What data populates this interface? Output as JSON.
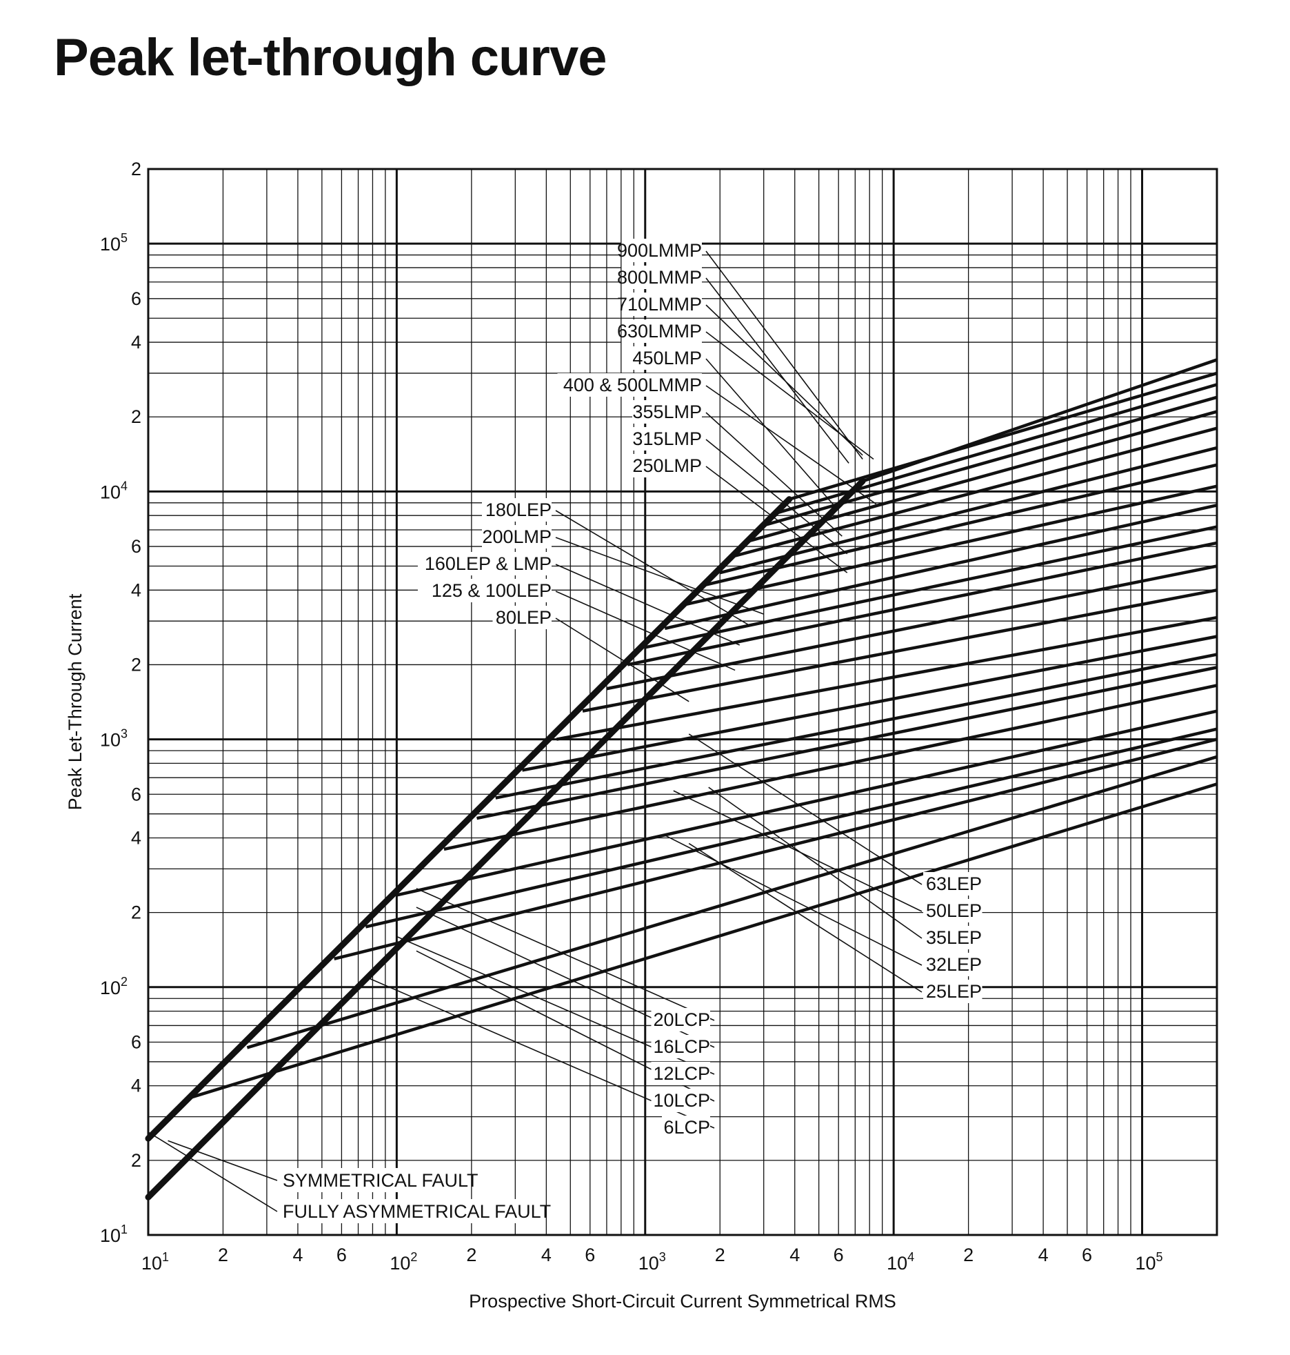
{
  "title": "Peak let-through curve",
  "chart_data": {
    "type": "line",
    "title": "Peak let-through curve",
    "xlabel": "Prospective Short-Circuit Current Symmetrical RMS",
    "ylabel": "Peak Let-Through Current",
    "xscale": "log",
    "yscale": "log",
    "xlim": [
      10,
      200000
    ],
    "ylim": [
      10,
      200000
    ],
    "grid": true,
    "x_tick_labels": [
      {
        "value": 10,
        "base": "10",
        "exp": "1"
      },
      {
        "value": 20,
        "base": "2",
        "exp": ""
      },
      {
        "value": 40,
        "base": "4",
        "exp": ""
      },
      {
        "value": 60,
        "base": "6",
        "exp": ""
      },
      {
        "value": 100,
        "base": "10",
        "exp": "2"
      },
      {
        "value": 200,
        "base": "2",
        "exp": ""
      },
      {
        "value": 400,
        "base": "4",
        "exp": ""
      },
      {
        "value": 600,
        "base": "6",
        "exp": ""
      },
      {
        "value": 1000,
        "base": "10",
        "exp": "3"
      },
      {
        "value": 2000,
        "base": "2",
        "exp": ""
      },
      {
        "value": 4000,
        "base": "4",
        "exp": ""
      },
      {
        "value": 6000,
        "base": "6",
        "exp": ""
      },
      {
        "value": 10000,
        "base": "10",
        "exp": "4"
      },
      {
        "value": 20000,
        "base": "2",
        "exp": ""
      },
      {
        "value": 40000,
        "base": "4",
        "exp": ""
      },
      {
        "value": 60000,
        "base": "6",
        "exp": ""
      },
      {
        "value": 100000,
        "base": "10",
        "exp": "5"
      }
    ],
    "y_tick_labels": [
      {
        "value": 10,
        "base": "10",
        "exp": "1"
      },
      {
        "value": 20,
        "base": "2",
        "exp": ""
      },
      {
        "value": 40,
        "base": "4",
        "exp": ""
      },
      {
        "value": 60,
        "base": "6",
        "exp": ""
      },
      {
        "value": 100,
        "base": "10",
        "exp": "2"
      },
      {
        "value": 200,
        "base": "2",
        "exp": ""
      },
      {
        "value": 400,
        "base": "4",
        "exp": ""
      },
      {
        "value": 600,
        "base": "6",
        "exp": ""
      },
      {
        "value": 1000,
        "base": "10",
        "exp": "3"
      },
      {
        "value": 2000,
        "base": "2",
        "exp": ""
      },
      {
        "value": 4000,
        "base": "4",
        "exp": ""
      },
      {
        "value": 6000,
        "base": "6",
        "exp": ""
      },
      {
        "value": 10000,
        "base": "10",
        "exp": "4"
      },
      {
        "value": 20000,
        "base": "2",
        "exp": ""
      },
      {
        "value": 40000,
        "base": "4",
        "exp": ""
      },
      {
        "value": 60000,
        "base": "6",
        "exp": ""
      },
      {
        "value": 100000,
        "base": "10",
        "exp": "5"
      },
      {
        "value": 200000,
        "base": "2",
        "exp": ""
      }
    ],
    "reference_lines": [
      {
        "name": "SYMMETRICAL FAULT",
        "x": [
          10,
          3800
        ],
        "y": [
          24.5,
          9300
        ]
      },
      {
        "name": "FULLY ASYMMETRICAL FAULT",
        "x": [
          10,
          7500
        ],
        "y": [
          14.2,
          11000
        ]
      }
    ],
    "series": [
      {
        "name": "900LMMP",
        "x": [
          7500,
          200000
        ],
        "y": [
          11000,
          34000
        ]
      },
      {
        "name": "800LMMP",
        "x": [
          3800,
          200000
        ],
        "y": [
          9300,
          30000
        ]
      },
      {
        "name": "710LMMP",
        "x": [
          3400,
          200000
        ],
        "y": [
          8200,
          27000
        ]
      },
      {
        "name": "630LMMP",
        "x": [
          3000,
          200000
        ],
        "y": [
          7300,
          24000
        ]
      },
      {
        "name": "450LMP",
        "x": [
          2600,
          200000
        ],
        "y": [
          6300,
          21000
        ]
      },
      {
        "name": "400 & 500LMMP",
        "x": [
          2300,
          200000
        ],
        "y": [
          5500,
          18000
        ]
      },
      {
        "name": "355LMP",
        "x": [
          2000,
          200000
        ],
        "y": [
          4700,
          15000
        ]
      },
      {
        "name": "315LMP",
        "x": [
          1750,
          200000
        ],
        "y": [
          4200,
          12800
        ]
      },
      {
        "name": "250LMP",
        "x": [
          1450,
          200000
        ],
        "y": [
          3500,
          10500
        ]
      },
      {
        "name": "200LMP",
        "x": [
          1200,
          200000
        ],
        "y": [
          2800,
          8800
        ]
      },
      {
        "name": "180LEP",
        "x": [
          1000,
          200000
        ],
        "y": [
          2350,
          7200
        ]
      },
      {
        "name": "160LEP & LMP",
        "x": [
          850,
          200000
        ],
        "y": [
          2000,
          6200
        ]
      },
      {
        "name": "125 & 100LEP",
        "x": [
          700,
          200000
        ],
        "y": [
          1600,
          5000
        ]
      },
      {
        "name": "80LEP",
        "x": [
          560,
          200000
        ],
        "y": [
          1300,
          4000
        ]
      },
      {
        "name": "63LEP",
        "x": [
          440,
          200000
        ],
        "y": [
          1000,
          3100
        ]
      },
      {
        "name": "50LEP",
        "x": [
          320,
          200000
        ],
        "y": [
          750,
          2600
        ]
      },
      {
        "name": "35LEP",
        "x": [
          250,
          200000
        ],
        "y": [
          580,
          2200
        ]
      },
      {
        "name": "32LEP",
        "x": [
          210,
          200000
        ],
        "y": [
          480,
          1950
        ]
      },
      {
        "name": "25LEP",
        "x": [
          155,
          200000
        ],
        "y": [
          360,
          1650
        ]
      },
      {
        "name": "20LCP",
        "x": [
          100,
          200000
        ],
        "y": [
          235,
          1300
        ]
      },
      {
        "name": "16LCP",
        "x": [
          75,
          200000
        ],
        "y": [
          175,
          1100
        ]
      },
      {
        "name": "12LCP",
        "x": [
          56,
          200000
        ],
        "y": [
          130,
          1000
        ]
      },
      {
        "name": "10LCP",
        "x": [
          25,
          200000
        ],
        "y": [
          57,
          850
        ]
      },
      {
        "name": "6LCP",
        "x": [
          15,
          200000
        ],
        "y": [
          36,
          660
        ]
      }
    ],
    "annotations": [
      {
        "text": "900LMMP",
        "x": 7500,
        "y": 13500
      },
      {
        "text": "800LMMP",
        "x": 6600,
        "y": 13000
      },
      {
        "text": "710LMMP",
        "x": 7500,
        "y": 14000
      },
      {
        "text": "630LMMP",
        "x": 8300,
        "y": 13500
      },
      {
        "text": "450LMP",
        "x": 5800,
        "y": 8700
      },
      {
        "text": "400 & 500LMMP",
        "x": 8500,
        "y": 8900
      },
      {
        "text": "355LMP",
        "x": 6200,
        "y": 6600
      },
      {
        "text": "315LMP",
        "x": 6500,
        "y": 5600
      },
      {
        "text": "250LMP",
        "x": 6500,
        "y": 4700
      },
      {
        "text": "180LEP",
        "x": 2600,
        "y": 2900
      },
      {
        "text": "200LMP",
        "x": 3000,
        "y": 3200
      },
      {
        "text": "160LEP & LMP",
        "x": 2400,
        "y": 2400
      },
      {
        "text": "125 & 100LEP",
        "x": 2300,
        "y": 1900
      },
      {
        "text": "80LEP",
        "x": 1500,
        "y": 1420
      },
      {
        "text": "63LEP",
        "x": 1500,
        "y": 1050
      },
      {
        "text": "50LEP",
        "x": 1300,
        "y": 620
      },
      {
        "text": "35LEP",
        "x": 1800,
        "y": 640
      },
      {
        "text": "32LEP",
        "x": 1200,
        "y": 410
      },
      {
        "text": "25LEP",
        "x": 1500,
        "y": 380
      },
      {
        "text": "20LCP",
        "x": 120,
        "y": 250
      },
      {
        "text": "16LCP",
        "x": 120,
        "y": 210
      },
      {
        "text": "12LCP",
        "x": 100,
        "y": 160
      },
      {
        "text": "10LCP",
        "x": 120,
        "y": 140
      },
      {
        "text": "6LCP",
        "x": 75,
        "y": 110
      },
      {
        "text": "SYMMETRICAL FAULT",
        "x": 12,
        "y": 24
      },
      {
        "text": "FULLY ASYMMETRICAL FAULT",
        "x": 10,
        "y": 26
      }
    ]
  }
}
